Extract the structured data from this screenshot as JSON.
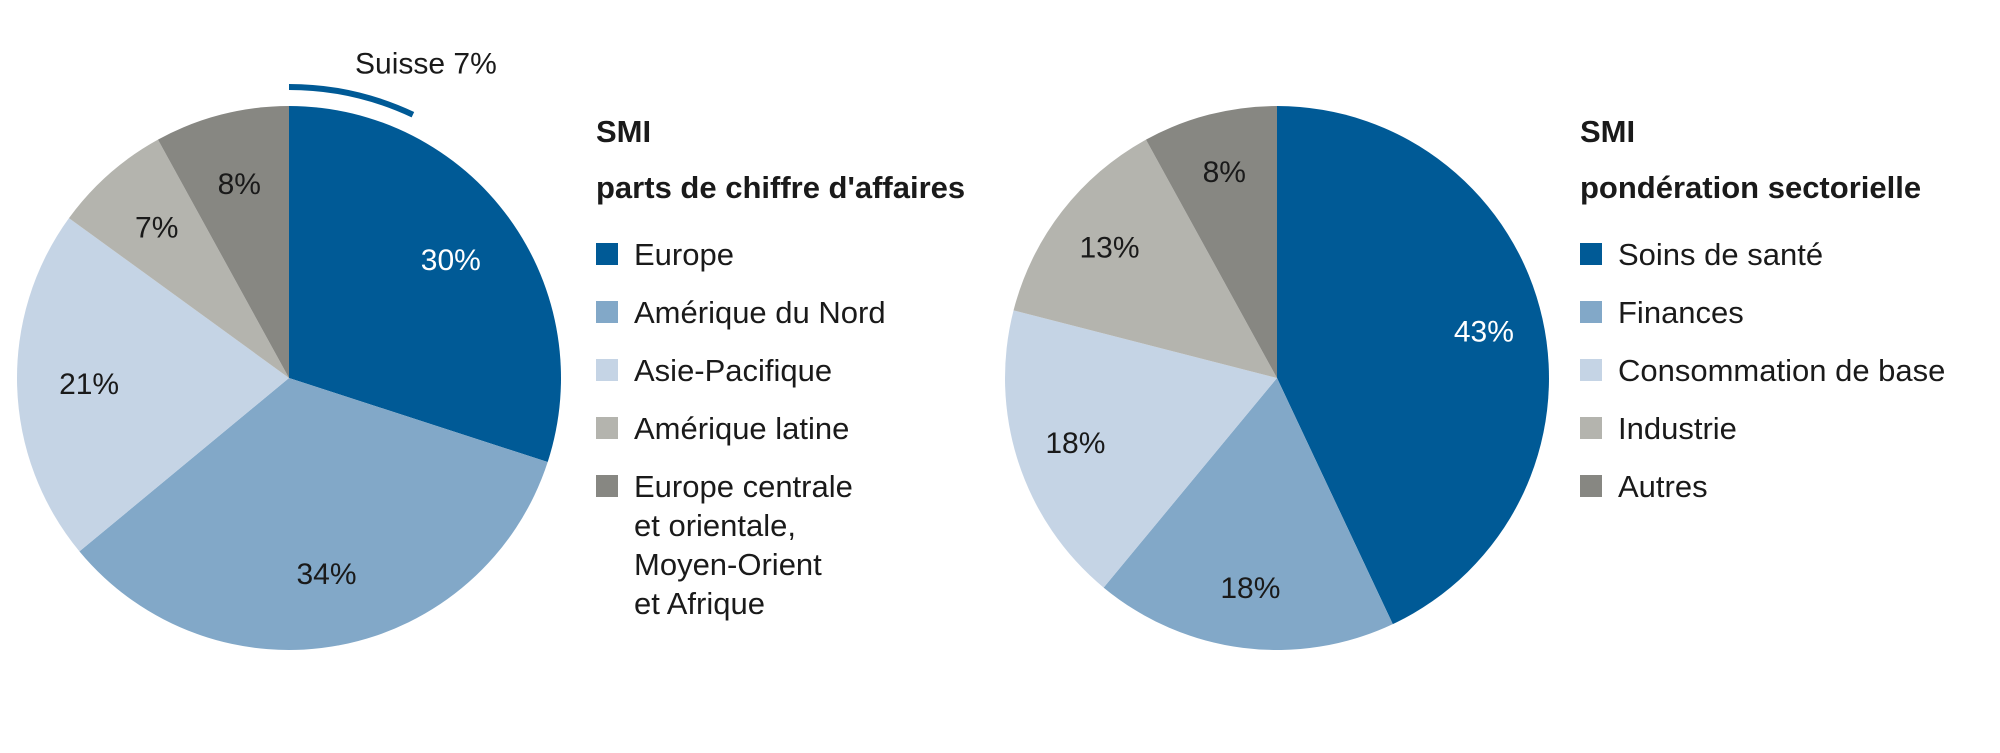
{
  "colors": {
    "dark_blue": "#005A96",
    "medium_blue": "#82A8C8",
    "light_blue": "#C5D4E5",
    "light_gray": "#B4B4AE",
    "dark_gray": "#878782"
  },
  "chart_data": [
    {
      "type": "pie",
      "title": "SMI",
      "subtitle": "parts de chiffre d'affaires",
      "categories": [
        "Europe",
        "Amérique du Nord",
        "Asie-Pacifique",
        "Amérique latine",
        "Europe centrale\net orientale,\nMoyen-Orient\net Afrique"
      ],
      "values": [
        30,
        34,
        21,
        7,
        8
      ],
      "labels": [
        "30%",
        "34%",
        "21%",
        "7%",
        "8%"
      ],
      "colors": [
        "#005A96",
        "#82A8C8",
        "#C5D4E5",
        "#B4B4AE",
        "#878782"
      ],
      "annotation": {
        "text": "Suisse 7%",
        "value": 7
      }
    },
    {
      "type": "pie",
      "title": "SMI",
      "subtitle": "pondération sectorielle",
      "categories": [
        "Soins de santé",
        "Finances",
        "Consommation de base",
        "Industrie",
        "Autres"
      ],
      "values": [
        43,
        18,
        18,
        13,
        8
      ],
      "labels": [
        "43%",
        "18%",
        "18%",
        "13%",
        "8%"
      ],
      "colors": [
        "#005A96",
        "#82A8C8",
        "#C5D4E5",
        "#B4B4AE",
        "#878782"
      ]
    }
  ]
}
